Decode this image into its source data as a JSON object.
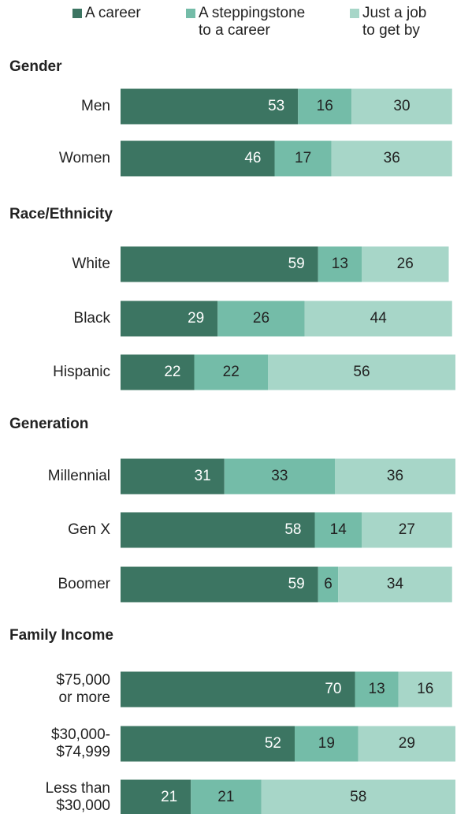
{
  "colors": {
    "career": "#3c7562",
    "steppingstone": "#74bca8",
    "job": "#a7d6c8",
    "label_dark": "#222222",
    "label_on_dark": "#ffffff"
  },
  "legend": [
    {
      "key": "career",
      "text": "A career"
    },
    {
      "key": "steppingstone",
      "text": "A steppingstone\nto a career"
    },
    {
      "key": "job",
      "text": "Just a job\nto get by"
    }
  ],
  "chart_data": {
    "type": "bar",
    "orientation": "horizontal",
    "stacked": true,
    "xlim": [
      0,
      100
    ],
    "legend_placement": "top",
    "groups": [
      {
        "title": "Gender",
        "categories": [
          "Men",
          "Women"
        ]
      },
      {
        "title": "Race/Ethnicity",
        "categories": [
          "White",
          "Black",
          "Hispanic"
        ]
      },
      {
        "title": "Generation",
        "categories": [
          "Millennial",
          "Gen X",
          "Boomer"
        ]
      },
      {
        "title": "Family Income",
        "categories": [
          "$75,000\nor more",
          "$30,000-\n$74,999",
          "Less than\n$30,000"
        ]
      }
    ],
    "series": [
      {
        "name": "A career",
        "key": "career",
        "values": [
          53,
          46,
          59,
          29,
          22,
          31,
          58,
          59,
          70,
          52,
          21
        ]
      },
      {
        "name": "A steppingstone to a career",
        "key": "steppingstone",
        "values": [
          16,
          17,
          13,
          26,
          22,
          33,
          14,
          6,
          13,
          19,
          21
        ]
      },
      {
        "name": "Just a job to get by",
        "key": "job",
        "values": [
          30,
          36,
          26,
          44,
          56,
          36,
          27,
          34,
          16,
          29,
          58
        ]
      }
    ]
  }
}
